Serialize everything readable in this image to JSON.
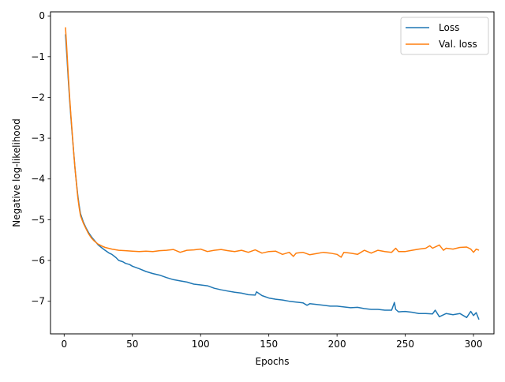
{
  "chart_data": {
    "type": "line",
    "title": "",
    "xlabel": "Epochs",
    "ylabel": "Negative log-likelihood",
    "xlim": [
      -10,
      315
    ],
    "ylim": [
      -7.8,
      0.1
    ],
    "xticks": [
      0,
      50,
      100,
      150,
      200,
      250,
      300
    ],
    "yticks": [
      0,
      -1,
      -2,
      -3,
      -4,
      -5,
      -6,
      -7
    ],
    "x_tick_labels": [
      "0",
      "50",
      "100",
      "150",
      "200",
      "250",
      "300"
    ],
    "y_tick_labels": [
      "0",
      "−1",
      "−2",
      "−3",
      "−4",
      "−5",
      "−6",
      "−7"
    ],
    "grid": false,
    "legend_position": "top-right",
    "series": [
      {
        "name": "Loss",
        "color": "#1f77b4",
        "points": [
          [
            1,
            -0.45
          ],
          [
            2,
            -1.0
          ],
          [
            3,
            -1.55
          ],
          [
            4,
            -2.05
          ],
          [
            5,
            -2.5
          ],
          [
            6,
            -2.95
          ],
          [
            7,
            -3.35
          ],
          [
            8,
            -3.75
          ],
          [
            9,
            -4.1
          ],
          [
            10,
            -4.4
          ],
          [
            11,
            -4.65
          ],
          [
            12,
            -4.85
          ],
          [
            14,
            -5.05
          ],
          [
            16,
            -5.2
          ],
          [
            18,
            -5.32
          ],
          [
            20,
            -5.42
          ],
          [
            22,
            -5.5
          ],
          [
            25,
            -5.62
          ],
          [
            28,
            -5.7
          ],
          [
            30,
            -5.75
          ],
          [
            33,
            -5.82
          ],
          [
            35,
            -5.85
          ],
          [
            38,
            -5.93
          ],
          [
            40,
            -6.0
          ],
          [
            43,
            -6.03
          ],
          [
            45,
            -6.07
          ],
          [
            48,
            -6.1
          ],
          [
            50,
            -6.14
          ],
          [
            55,
            -6.2
          ],
          [
            60,
            -6.27
          ],
          [
            65,
            -6.32
          ],
          [
            70,
            -6.36
          ],
          [
            75,
            -6.42
          ],
          [
            80,
            -6.47
          ],
          [
            85,
            -6.5
          ],
          [
            90,
            -6.53
          ],
          [
            95,
            -6.58
          ],
          [
            100,
            -6.6
          ],
          [
            105,
            -6.62
          ],
          [
            110,
            -6.68
          ],
          [
            115,
            -6.72
          ],
          [
            120,
            -6.75
          ],
          [
            125,
            -6.78
          ],
          [
            130,
            -6.8
          ],
          [
            135,
            -6.84
          ],
          [
            140,
            -6.85
          ],
          [
            141,
            -6.77
          ],
          [
            145,
            -6.86
          ],
          [
            150,
            -6.92
          ],
          [
            155,
            -6.95
          ],
          [
            160,
            -6.97
          ],
          [
            165,
            -7.0
          ],
          [
            170,
            -7.02
          ],
          [
            175,
            -7.04
          ],
          [
            178,
            -7.1
          ],
          [
            180,
            -7.06
          ],
          [
            185,
            -7.08
          ],
          [
            190,
            -7.1
          ],
          [
            195,
            -7.12
          ],
          [
            200,
            -7.12
          ],
          [
            205,
            -7.14
          ],
          [
            210,
            -7.16
          ],
          [
            215,
            -7.15
          ],
          [
            220,
            -7.18
          ],
          [
            225,
            -7.2
          ],
          [
            230,
            -7.2
          ],
          [
            235,
            -7.22
          ],
          [
            240,
            -7.22
          ],
          [
            242,
            -7.03
          ],
          [
            243,
            -7.2
          ],
          [
            245,
            -7.26
          ],
          [
            250,
            -7.25
          ],
          [
            255,
            -7.27
          ],
          [
            260,
            -7.3
          ],
          [
            265,
            -7.3
          ],
          [
            270,
            -7.31
          ],
          [
            272,
            -7.22
          ],
          [
            275,
            -7.38
          ],
          [
            280,
            -7.3
          ],
          [
            285,
            -7.33
          ],
          [
            290,
            -7.3
          ],
          [
            295,
            -7.4
          ],
          [
            298,
            -7.25
          ],
          [
            300,
            -7.35
          ],
          [
            302,
            -7.28
          ],
          [
            304,
            -7.45
          ]
        ]
      },
      {
        "name": "Val. loss",
        "color": "#ff7f0e",
        "points": [
          [
            1,
            -0.28
          ],
          [
            2,
            -0.85
          ],
          [
            3,
            -1.45
          ],
          [
            4,
            -1.98
          ],
          [
            5,
            -2.45
          ],
          [
            6,
            -2.92
          ],
          [
            7,
            -3.35
          ],
          [
            8,
            -3.75
          ],
          [
            9,
            -4.12
          ],
          [
            10,
            -4.45
          ],
          [
            11,
            -4.7
          ],
          [
            12,
            -4.9
          ],
          [
            14,
            -5.08
          ],
          [
            16,
            -5.22
          ],
          [
            18,
            -5.35
          ],
          [
            20,
            -5.45
          ],
          [
            22,
            -5.52
          ],
          [
            25,
            -5.6
          ],
          [
            28,
            -5.65
          ],
          [
            30,
            -5.68
          ],
          [
            35,
            -5.72
          ],
          [
            40,
            -5.75
          ],
          [
            45,
            -5.76
          ],
          [
            50,
            -5.77
          ],
          [
            55,
            -5.78
          ],
          [
            60,
            -5.77
          ],
          [
            65,
            -5.78
          ],
          [
            70,
            -5.76
          ],
          [
            75,
            -5.75
          ],
          [
            80,
            -5.73
          ],
          [
            85,
            -5.8
          ],
          [
            90,
            -5.75
          ],
          [
            95,
            -5.74
          ],
          [
            100,
            -5.72
          ],
          [
            105,
            -5.78
          ],
          [
            110,
            -5.75
          ],
          [
            115,
            -5.73
          ],
          [
            120,
            -5.76
          ],
          [
            125,
            -5.78
          ],
          [
            130,
            -5.75
          ],
          [
            135,
            -5.8
          ],
          [
            140,
            -5.74
          ],
          [
            145,
            -5.82
          ],
          [
            150,
            -5.78
          ],
          [
            155,
            -5.77
          ],
          [
            160,
            -5.85
          ],
          [
            165,
            -5.8
          ],
          [
            168,
            -5.9
          ],
          [
            170,
            -5.82
          ],
          [
            175,
            -5.8
          ],
          [
            180,
            -5.86
          ],
          [
            185,
            -5.83
          ],
          [
            190,
            -5.8
          ],
          [
            195,
            -5.82
          ],
          [
            200,
            -5.85
          ],
          [
            203,
            -5.92
          ],
          [
            205,
            -5.8
          ],
          [
            210,
            -5.82
          ],
          [
            215,
            -5.85
          ],
          [
            220,
            -5.75
          ],
          [
            225,
            -5.82
          ],
          [
            230,
            -5.75
          ],
          [
            235,
            -5.78
          ],
          [
            240,
            -5.8
          ],
          [
            243,
            -5.7
          ],
          [
            245,
            -5.78
          ],
          [
            250,
            -5.78
          ],
          [
            255,
            -5.75
          ],
          [
            260,
            -5.72
          ],
          [
            265,
            -5.7
          ],
          [
            268,
            -5.64
          ],
          [
            270,
            -5.7
          ],
          [
            275,
            -5.62
          ],
          [
            278,
            -5.75
          ],
          [
            280,
            -5.7
          ],
          [
            285,
            -5.72
          ],
          [
            290,
            -5.68
          ],
          [
            295,
            -5.67
          ],
          [
            298,
            -5.72
          ],
          [
            300,
            -5.8
          ],
          [
            302,
            -5.72
          ],
          [
            304,
            -5.75
          ]
        ]
      }
    ]
  }
}
